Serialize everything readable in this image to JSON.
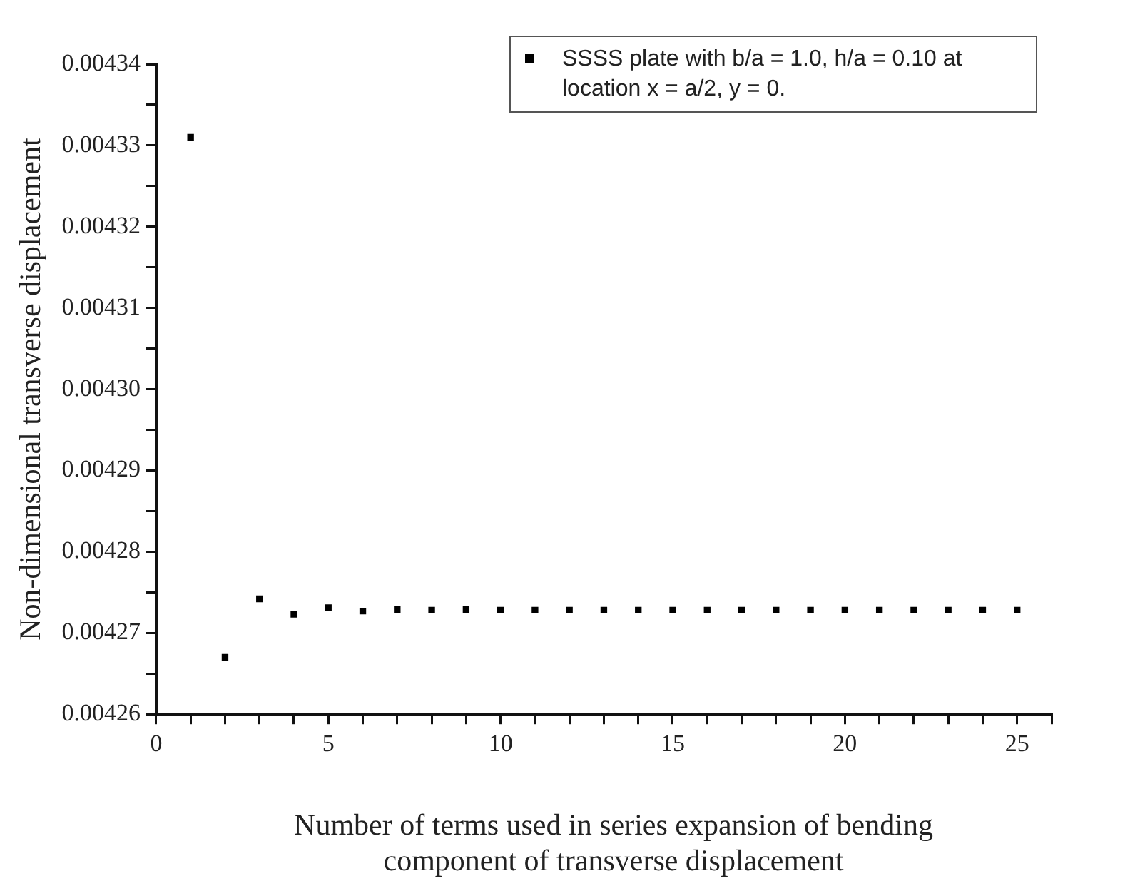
{
  "chart_data": {
    "type": "scatter",
    "xlabel": "Number of terms used in series expansion of bending component of transverse displacement",
    "ylabel": "Non-dimensional transverse displacement",
    "x": [
      1,
      2,
      3,
      4,
      5,
      6,
      7,
      8,
      9,
      10,
      11,
      12,
      13,
      14,
      15,
      16,
      17,
      18,
      19,
      20,
      21,
      22,
      23,
      24,
      25
    ],
    "series": [
      {
        "name": "SSSS plate with b/a = 1.0, h/a = 0.10 at location x = a/2, y = 0.",
        "color": "#000000",
        "values": [
          0.004331,
          0.004267,
          0.0042742,
          0.0042723,
          0.0042731,
          0.0042727,
          0.0042729,
          0.0042728,
          0.0042729,
          0.0042728,
          0.0042728,
          0.0042728,
          0.0042728,
          0.0042728,
          0.0042728,
          0.0042728,
          0.0042728,
          0.0042728,
          0.0042728,
          0.0042728,
          0.0042728,
          0.0042728,
          0.0042728,
          0.0042728,
          0.0042728
        ]
      }
    ],
    "xlim": [
      0,
      26
    ],
    "xticks": [
      0,
      {
        "value": 1,
        "label": null
      },
      {
        "value": 2,
        "label": null
      },
      {
        "value": 3,
        "label": null
      },
      {
        "value": 4,
        "label": null
      },
      5,
      {
        "value": 6,
        "label": null
      },
      {
        "value": 7,
        "label": null
      },
      {
        "value": 8,
        "label": null
      },
      {
        "value": 9,
        "label": null
      },
      10,
      {
        "value": 11,
        "label": null
      },
      {
        "value": 12,
        "label": null
      },
      {
        "value": 13,
        "label": null
      },
      {
        "value": 14,
        "label": null
      },
      15,
      {
        "value": 16,
        "label": null
      },
      {
        "value": 17,
        "label": null
      },
      {
        "value": 18,
        "label": null
      },
      {
        "value": 19,
        "label": null
      },
      20,
      {
        "value": 21,
        "label": null
      },
      {
        "value": 22,
        "label": null
      },
      {
        "value": 23,
        "label": null
      },
      {
        "value": 24,
        "label": null
      },
      25,
      {
        "value": 26,
        "label": null
      }
    ],
    "ylim": [
      0.00426,
      0.00434
    ],
    "yticks": [
      {
        "value": 0.00426,
        "label": "0.00426"
      },
      {
        "value": 0.004265,
        "label": null
      },
      {
        "value": 0.00427,
        "label": "0.00427"
      },
      {
        "value": 0.004275,
        "label": null
      },
      {
        "value": 0.00428,
        "label": "0.00428"
      },
      {
        "value": 0.004285,
        "label": null
      },
      {
        "value": 0.00429,
        "label": "0.00429"
      },
      {
        "value": 0.004295,
        "label": null
      },
      {
        "value": 0.0043,
        "label": "0.00430"
      },
      {
        "value": 0.004305,
        "label": null
      },
      {
        "value": 0.00431,
        "label": "0.00431"
      },
      {
        "value": 0.004315,
        "label": null
      },
      {
        "value": 0.00432,
        "label": "0.00432"
      },
      {
        "value": 0.004325,
        "label": null
      },
      {
        "value": 0.00433,
        "label": "0.00433"
      },
      {
        "value": 0.004335,
        "label": null
      },
      {
        "value": 0.00434,
        "label": "0.00434"
      }
    ],
    "grid": false,
    "legend": "top right",
    "marker": "square"
  }
}
